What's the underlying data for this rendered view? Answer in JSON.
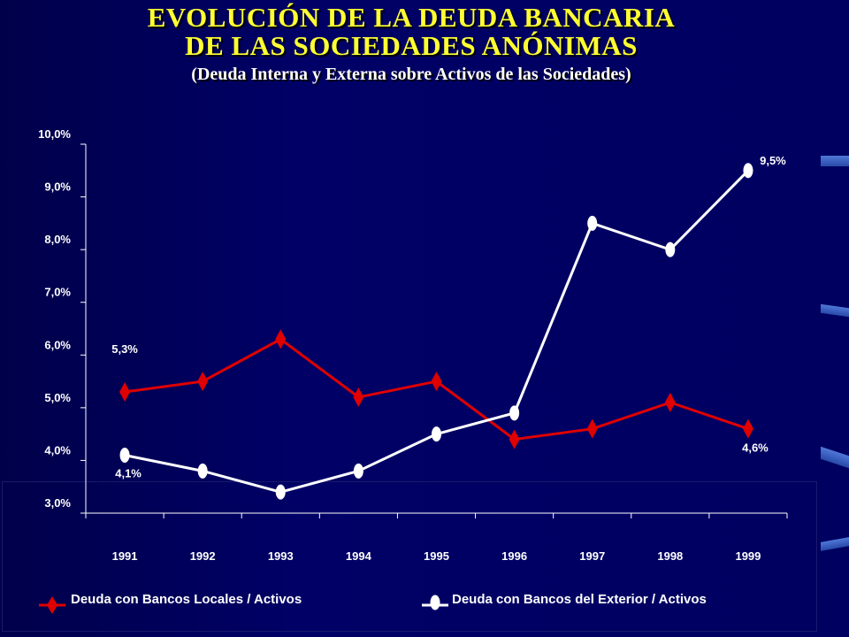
{
  "title": {
    "line1": "EVOLUCIÓN DE LA DEUDA BANCARIA",
    "line2": "DE LAS SOCIEDADES ANÓNIMAS",
    "subtitle": "(Deuda Interna y Externa sobre Activos de las Sociedades)"
  },
  "colors": {
    "background": "#000066",
    "title": "#ffff33",
    "series_local": "#e00000",
    "series_exterior": "#ffffff",
    "text": "#ffffff"
  },
  "chart_data": {
    "type": "line",
    "x": [
      "1991",
      "1992",
      "1993",
      "1994",
      "1995",
      "1996",
      "1997",
      "1998",
      "1999"
    ],
    "ylim": [
      3.0,
      10.0
    ],
    "y_ticks": [
      "3,0%",
      "4,0%",
      "5,0%",
      "6,0%",
      "7,0%",
      "8,0%",
      "9,0%",
      "10,0%"
    ],
    "grid": false,
    "legend_position": "bottom",
    "series": [
      {
        "name": "Deuda con Bancos Locales / Activos",
        "marker": "diamond",
        "color": "#e00000",
        "values": [
          5.3,
          5.5,
          6.3,
          5.2,
          5.5,
          4.4,
          4.6,
          5.1,
          4.6
        ]
      },
      {
        "name": "Deuda con Bancos del Exterior / Activos",
        "marker": "circle",
        "color": "#ffffff",
        "values": [
          4.1,
          3.8,
          3.4,
          3.8,
          4.5,
          4.9,
          8.5,
          8.0,
          9.5
        ]
      }
    ],
    "annotations": [
      {
        "series": 0,
        "index": 0,
        "text": "5,3%"
      },
      {
        "series": 0,
        "index": 8,
        "text": "4,6%"
      },
      {
        "series": 1,
        "index": 0,
        "text": "4,1%"
      },
      {
        "series": 1,
        "index": 8,
        "text": "9,5%"
      }
    ]
  }
}
